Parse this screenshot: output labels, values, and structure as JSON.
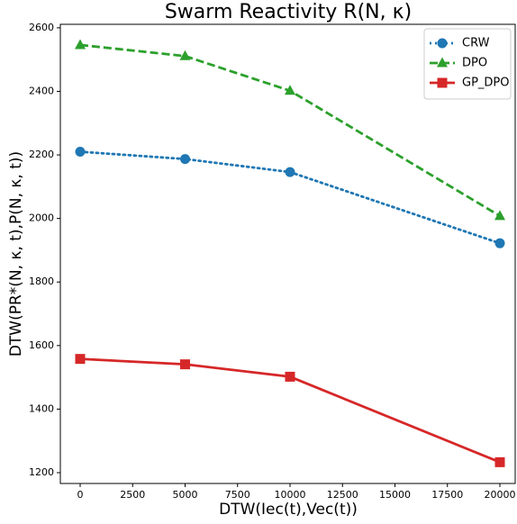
{
  "chart_data": {
    "type": "line",
    "title": "Swarm Reactivity R(N, κ)",
    "x_label": "DTW(Iec(t),Vec(t))",
    "y_label": "DTW(PR*(N, κ, t),P(N, κ, t))",
    "x": [
      0,
      5000,
      10000,
      20000
    ],
    "series": [
      {
        "name": "CRW",
        "color": "#1f77b4",
        "linestyle": "dotted",
        "marker": "circle",
        "values": [
          2210,
          2187,
          2146,
          1922
        ]
      },
      {
        "name": "DPO",
        "color": "#2ca02c",
        "linestyle": "dashed",
        "marker": "triangle",
        "values": [
          2546,
          2511,
          2402,
          2008
        ]
      },
      {
        "name": "GP_DPO",
        "color": "#d62728",
        "linestyle": "solid",
        "marker": "square",
        "values": [
          1558,
          1541,
          1502,
          1233
        ]
      }
    ],
    "xlim": [
      -944,
      20730
    ],
    "ylim": [
      1166,
      2611
    ],
    "xticks": [
      0,
      2500,
      5000,
      7500,
      10000,
      12500,
      15000,
      17500,
      20000
    ],
    "yticks": [
      1200,
      1400,
      1600,
      1800,
      2000,
      2200,
      2400,
      2600
    ],
    "legend": "upper right",
    "grid": false
  }
}
